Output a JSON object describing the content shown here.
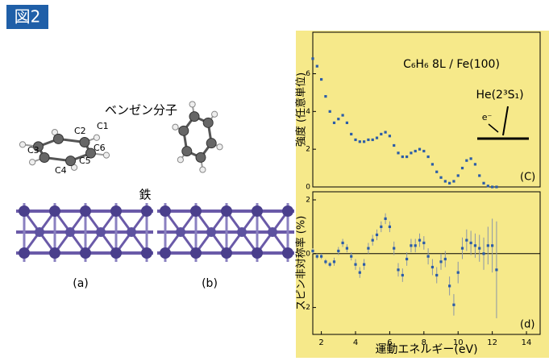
{
  "figure_label": "図2",
  "diagram": {
    "molecule_label": "ベンゼン分子",
    "atoms": [
      "C1",
      "C2",
      "C3",
      "C4",
      "C5",
      "C6"
    ],
    "substrate_label": "鉄",
    "panel_a": "(a)",
    "panel_b": "(b)"
  },
  "chart_data": [
    {
      "type": "scatter",
      "ylabel": "強度 (任意単位)",
      "annotation": "C₆H₆ 8L / Fe(100)",
      "beam_label": "He(2³S₁)",
      "electron_label": "e⁻",
      "panel_label": "(C)",
      "xlim": [
        1.5,
        14.8
      ],
      "ylim": [
        0,
        8.2
      ],
      "yticks": [
        0,
        2,
        4,
        6
      ],
      "color": "#2b5ca8",
      "x": [
        1.5,
        1.75,
        2.0,
        2.25,
        2.5,
        2.75,
        3.0,
        3.25,
        3.5,
        3.75,
        4.0,
        4.25,
        4.5,
        4.75,
        5.0,
        5.25,
        5.5,
        5.75,
        6.0,
        6.25,
        6.5,
        6.75,
        7.0,
        7.25,
        7.5,
        7.75,
        8.0,
        8.25,
        8.5,
        8.75,
        9.0,
        9.25,
        9.5,
        9.75,
        10.0,
        10.25,
        10.5,
        10.75,
        11.0,
        11.25,
        11.5,
        11.75,
        12.0,
        12.25
      ],
      "values": [
        6.8,
        6.4,
        5.7,
        4.8,
        4.0,
        3.4,
        3.6,
        3.8,
        3.4,
        2.8,
        2.5,
        2.4,
        2.4,
        2.5,
        2.5,
        2.6,
        2.8,
        2.9,
        2.7,
        2.2,
        1.8,
        1.6,
        1.6,
        1.8,
        1.9,
        2.0,
        1.9,
        1.6,
        1.2,
        0.8,
        0.5,
        0.3,
        0.2,
        0.3,
        0.6,
        1.0,
        1.4,
        1.5,
        1.2,
        0.6,
        0.2,
        0.05,
        0.0,
        0.0
      ]
    },
    {
      "type": "errorbar",
      "ylabel": "スピン非対称率 (%)",
      "xlabel": "運動エネルギー(eV)",
      "panel_label": "(d)",
      "xlim": [
        1.5,
        14.8
      ],
      "xticks": [
        2,
        4,
        6,
        8,
        10,
        12,
        14
      ],
      "ylim": [
        -3.0,
        2.3
      ],
      "yticks": [
        -2,
        0,
        2
      ],
      "color": "#2b5ca8",
      "error_color": "#8a96a8",
      "x": [
        1.5,
        1.75,
        2.0,
        2.25,
        2.5,
        2.75,
        3.0,
        3.25,
        3.5,
        3.75,
        4.0,
        4.25,
        4.5,
        4.75,
        5.0,
        5.25,
        5.5,
        5.75,
        6.0,
        6.25,
        6.5,
        6.75,
        7.0,
        7.25,
        7.5,
        7.75,
        8.0,
        8.25,
        8.5,
        8.75,
        9.0,
        9.25,
        9.5,
        9.75,
        10.0,
        10.25,
        10.5,
        10.75,
        11.0,
        11.25,
        11.5,
        11.75,
        12.0,
        12.25
      ],
      "values": [
        0.1,
        -0.1,
        -0.1,
        -0.3,
        -0.4,
        -0.3,
        0.1,
        0.4,
        0.2,
        -0.1,
        -0.4,
        -0.7,
        -0.4,
        0.2,
        0.5,
        0.7,
        1.0,
        1.3,
        1.0,
        0.2,
        -0.6,
        -0.8,
        -0.2,
        0.3,
        0.3,
        0.5,
        0.4,
        -0.1,
        -0.5,
        -0.8,
        -0.3,
        -0.2,
        -1.2,
        -1.9,
        -0.7,
        0.2,
        0.5,
        0.4,
        0.3,
        0.2,
        0.0,
        0.3,
        0.3,
        -0.6
      ],
      "errors": [
        0.1,
        0.1,
        0.1,
        0.1,
        0.1,
        0.15,
        0.15,
        0.15,
        0.15,
        0.15,
        0.2,
        0.2,
        0.2,
        0.2,
        0.2,
        0.2,
        0.2,
        0.2,
        0.2,
        0.25,
        0.25,
        0.25,
        0.25,
        0.25,
        0.25,
        0.25,
        0.25,
        0.3,
        0.3,
        0.3,
        0.3,
        0.3,
        0.35,
        0.4,
        0.4,
        0.4,
        0.4,
        0.45,
        0.45,
        0.5,
        0.6,
        0.7,
        1.0,
        1.8
      ]
    }
  ]
}
